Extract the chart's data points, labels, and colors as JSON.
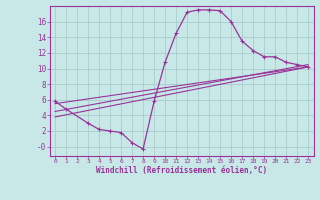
{
  "xlabel": "Windchill (Refroidissement éolien,°C)",
  "bg_color": "#c8e8e8",
  "grid_color": "#aacccc",
  "line_color": "#993399",
  "xlim": [
    -0.5,
    23.5
  ],
  "ylim": [
    -1.2,
    18.0
  ],
  "xticks": [
    0,
    1,
    2,
    3,
    4,
    5,
    6,
    7,
    8,
    9,
    10,
    11,
    12,
    13,
    14,
    15,
    16,
    17,
    18,
    19,
    20,
    21,
    22,
    23
  ],
  "yticks": [
    0,
    2,
    4,
    6,
    8,
    10,
    12,
    14,
    16
  ],
  "ytick_labels": [
    "-0",
    "2",
    "4",
    "6",
    "8",
    "10",
    "12",
    "14",
    "16"
  ],
  "curve1_x": [
    0,
    1,
    3,
    4,
    5,
    6,
    7,
    8,
    9,
    10,
    11,
    12,
    13,
    14,
    15,
    16,
    17,
    18,
    19,
    20,
    21,
    22,
    23
  ],
  "curve1_y": [
    5.8,
    4.8,
    3.0,
    2.2,
    2.0,
    1.8,
    0.5,
    -0.3,
    5.8,
    10.8,
    14.5,
    17.2,
    17.5,
    17.5,
    17.4,
    16.0,
    13.5,
    12.3,
    11.5,
    11.5,
    10.8,
    10.5,
    10.2
  ],
  "line1_x": [
    0,
    23
  ],
  "line1_y": [
    3.8,
    10.2
  ],
  "line2_x": [
    0,
    23
  ],
  "line2_y": [
    4.5,
    10.5
  ],
  "line3_x": [
    0,
    23
  ],
  "line3_y": [
    5.5,
    10.2
  ]
}
